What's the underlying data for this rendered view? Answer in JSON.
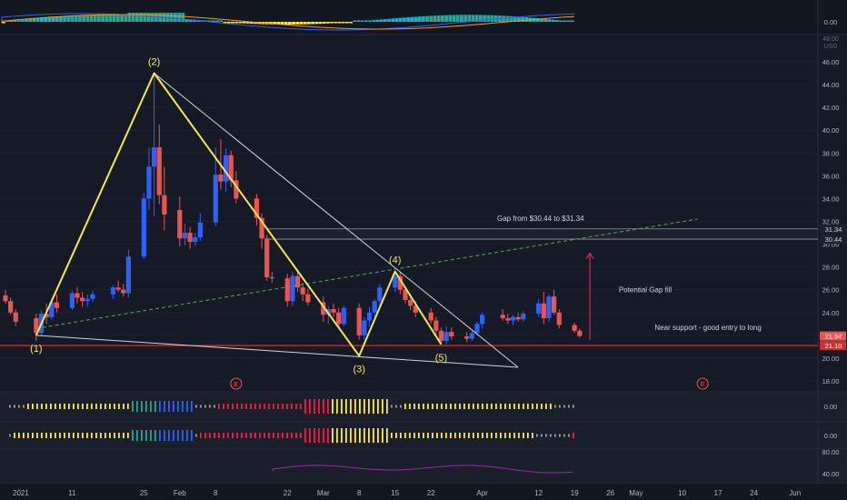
{
  "colors": {
    "background": "#131722",
    "bull": "#2962ff",
    "bear": "#ef5350",
    "wave": "#f5e94a",
    "support": "#d32f2f",
    "trend": "#4caf50",
    "arrow": "#e91e63",
    "grid": "#1e2230",
    "text": "#b2b5be",
    "rsi": "#9c27b0"
  },
  "chart_data": {
    "type": "candlestick",
    "title": "",
    "price_axis": {
      "unit": "USD",
      "range": [
        17,
        47
      ],
      "ticks": [
        "46.00",
        "44.00",
        "42.00",
        "40.00",
        "38.00",
        "36.00",
        "34.00",
        "32.00",
        "30.00",
        "28.00",
        "26.00",
        "24.00",
        "22.00",
        "20.00",
        "18.00"
      ],
      "top_tick": "48.00"
    },
    "time_axis": {
      "range": [
        "2020-12-29",
        "2021-06-03"
      ],
      "ticks": [
        {
          "date": "2021-01-01",
          "label": "2021"
        },
        {
          "date": "2021-01-11",
          "label": "11"
        },
        {
          "date": "2021-01-25",
          "label": "25"
        },
        {
          "date": "2021-02-01",
          "label": "Feb"
        },
        {
          "date": "2021-02-08",
          "label": "8"
        },
        {
          "date": "2021-02-22",
          "label": "22"
        },
        {
          "date": "2021-03-01",
          "label": "Mar"
        },
        {
          "date": "2021-03-08",
          "label": "8"
        },
        {
          "date": "2021-03-15",
          "label": "15"
        },
        {
          "date": "2021-03-22",
          "label": "22"
        },
        {
          "date": "2021-04-01",
          "label": "Apr"
        },
        {
          "date": "2021-04-12",
          "label": "12"
        },
        {
          "date": "2021-04-19",
          "label": "19"
        },
        {
          "date": "2021-04-26",
          "label": "26"
        },
        {
          "date": "2021-05-01",
          "label": "May"
        },
        {
          "date": "2021-05-10",
          "label": "10"
        },
        {
          "date": "2021-05-17",
          "label": "17"
        },
        {
          "date": "2021-05-24",
          "label": "24"
        },
        {
          "date": "2021-06-01",
          "label": "Jun"
        }
      ]
    },
    "candles": [
      {
        "d": "2020-12-29",
        "o": 25.5,
        "h": 26.0,
        "l": 24.8,
        "c": 25.0
      },
      {
        "d": "2020-12-30",
        "o": 25.0,
        "h": 25.3,
        "l": 23.8,
        "c": 24.0
      },
      {
        "d": "2020-12-31",
        "o": 24.0,
        "h": 24.3,
        "l": 22.8,
        "c": 23.2
      },
      {
        "d": "2021-01-04",
        "o": 23.5,
        "h": 23.9,
        "l": 21.5,
        "c": 22.2
      },
      {
        "d": "2021-01-05",
        "o": 22.2,
        "h": 24.2,
        "l": 22.0,
        "c": 23.9
      },
      {
        "d": "2021-01-06",
        "o": 23.9,
        "h": 24.8,
        "l": 23.0,
        "c": 23.6
      },
      {
        "d": "2021-01-07",
        "o": 23.6,
        "h": 25.2,
        "l": 23.4,
        "c": 24.9
      },
      {
        "d": "2021-01-08",
        "o": 24.9,
        "h": 25.6,
        "l": 24.0,
        "c": 24.4
      },
      {
        "d": "2021-01-11",
        "o": 24.4,
        "h": 25.9,
        "l": 24.2,
        "c": 25.7
      },
      {
        "d": "2021-01-12",
        "o": 25.7,
        "h": 26.2,
        "l": 24.8,
        "c": 25.3
      },
      {
        "d": "2021-01-13",
        "o": 25.3,
        "h": 25.8,
        "l": 24.5,
        "c": 25.0
      },
      {
        "d": "2021-01-14",
        "o": 25.0,
        "h": 25.6,
        "l": 24.5,
        "c": 25.2
      },
      {
        "d": "2021-01-15",
        "o": 25.2,
        "h": 25.9,
        "l": 24.9,
        "c": 25.6
      },
      {
        "d": "2021-01-19",
        "o": 25.6,
        "h": 26.4,
        "l": 25.2,
        "c": 26.2
      },
      {
        "d": "2021-01-20",
        "o": 26.2,
        "h": 26.8,
        "l": 25.8,
        "c": 26.0
      },
      {
        "d": "2021-01-21",
        "o": 26.0,
        "h": 26.5,
        "l": 25.4,
        "c": 25.7
      },
      {
        "d": "2021-01-22",
        "o": 25.7,
        "h": 29.5,
        "l": 25.3,
        "c": 28.9
      },
      {
        "d": "2021-01-25",
        "o": 28.9,
        "h": 34.5,
        "l": 28.7,
        "c": 34.0
      },
      {
        "d": "2021-01-26",
        "o": 34.0,
        "h": 38.5,
        "l": 33.0,
        "c": 36.8
      },
      {
        "d": "2021-01-27",
        "o": 36.8,
        "h": 45.0,
        "l": 32.5,
        "c": 38.5
      },
      {
        "d": "2021-01-28",
        "o": 38.5,
        "h": 40.5,
        "l": 33.5,
        "c": 34.3
      },
      {
        "d": "2021-01-29",
        "o": 34.3,
        "h": 36.8,
        "l": 31.2,
        "c": 32.6
      },
      {
        "d": "2021-02-01",
        "o": 33.0,
        "h": 34.2,
        "l": 29.8,
        "c": 30.5
      },
      {
        "d": "2021-02-02",
        "o": 30.5,
        "h": 31.8,
        "l": 29.9,
        "c": 31.0
      },
      {
        "d": "2021-02-03",
        "o": 31.0,
        "h": 31.5,
        "l": 29.6,
        "c": 30.2
      },
      {
        "d": "2021-02-04",
        "o": 30.2,
        "h": 31.0,
        "l": 29.9,
        "c": 30.6
      },
      {
        "d": "2021-02-05",
        "o": 30.6,
        "h": 32.7,
        "l": 30.3,
        "c": 31.9
      },
      {
        "d": "2021-02-08",
        "o": 31.9,
        "h": 38.5,
        "l": 31.6,
        "c": 36.1
      },
      {
        "d": "2021-02-09",
        "o": 36.1,
        "h": 39.2,
        "l": 34.8,
        "c": 35.5
      },
      {
        "d": "2021-02-10",
        "o": 35.5,
        "h": 38.4,
        "l": 34.6,
        "c": 37.8
      },
      {
        "d": "2021-02-11",
        "o": 37.8,
        "h": 38.2,
        "l": 35.0,
        "c": 35.6
      },
      {
        "d": "2021-02-12",
        "o": 35.6,
        "h": 36.4,
        "l": 33.6,
        "c": 34.0
      },
      {
        "d": "2021-02-16",
        "o": 34.0,
        "h": 34.4,
        "l": 31.6,
        "c": 32.3
      },
      {
        "d": "2021-02-17",
        "o": 32.3,
        "h": 32.7,
        "l": 29.6,
        "c": 30.5
      },
      {
        "d": "2021-02-18",
        "o": 30.5,
        "h": 30.8,
        "l": 26.8,
        "c": 27.1
      },
      {
        "d": "2021-02-19",
        "o": 27.1,
        "h": 27.6,
        "l": 26.6,
        "c": 27.0
      },
      {
        "d": "2021-02-22",
        "o": 27.0,
        "h": 27.4,
        "l": 24.5,
        "c": 25.0
      },
      {
        "d": "2021-02-23",
        "o": 25.0,
        "h": 27.6,
        "l": 24.6,
        "c": 27.2
      },
      {
        "d": "2021-02-24",
        "o": 27.2,
        "h": 27.8,
        "l": 25.8,
        "c": 26.2
      },
      {
        "d": "2021-02-25",
        "o": 26.2,
        "h": 26.6,
        "l": 25.0,
        "c": 25.6
      },
      {
        "d": "2021-02-26",
        "o": 25.6,
        "h": 26.1,
        "l": 24.6,
        "c": 24.9
      },
      {
        "d": "2021-03-01",
        "o": 24.9,
        "h": 25.4,
        "l": 23.2,
        "c": 23.8
      },
      {
        "d": "2021-03-02",
        "o": 23.8,
        "h": 24.6,
        "l": 23.0,
        "c": 24.3
      },
      {
        "d": "2021-03-03",
        "o": 24.3,
        "h": 24.8,
        "l": 23.6,
        "c": 24.0
      },
      {
        "d": "2021-03-04",
        "o": 24.0,
        "h": 24.4,
        "l": 22.6,
        "c": 23.0
      },
      {
        "d": "2021-03-05",
        "o": 23.0,
        "h": 24.6,
        "l": 22.8,
        "c": 24.4
      },
      {
        "d": "2021-03-08",
        "o": 24.4,
        "h": 24.8,
        "l": 21.6,
        "c": 22.0
      },
      {
        "d": "2021-03-09",
        "o": 22.0,
        "h": 23.6,
        "l": 21.6,
        "c": 23.3
      },
      {
        "d": "2021-03-10",
        "o": 23.3,
        "h": 24.5,
        "l": 22.8,
        "c": 24.0
      },
      {
        "d": "2021-03-11",
        "o": 24.0,
        "h": 25.2,
        "l": 23.6,
        "c": 25.0
      },
      {
        "d": "2021-03-12",
        "o": 25.0,
        "h": 26.5,
        "l": 24.6,
        "c": 26.2
      },
      {
        "d": "2021-03-15",
        "o": 26.2,
        "h": 27.6,
        "l": 25.8,
        "c": 27.2
      },
      {
        "d": "2021-03-16",
        "o": 27.2,
        "h": 27.6,
        "l": 25.6,
        "c": 26.0
      },
      {
        "d": "2021-03-17",
        "o": 26.0,
        "h": 26.3,
        "l": 24.8,
        "c": 25.1
      },
      {
        "d": "2021-03-18",
        "o": 25.1,
        "h": 25.5,
        "l": 24.2,
        "c": 24.6
      },
      {
        "d": "2021-03-19",
        "o": 24.6,
        "h": 25.0,
        "l": 23.6,
        "c": 24.0
      },
      {
        "d": "2021-03-22",
        "o": 24.0,
        "h": 24.4,
        "l": 23.0,
        "c": 23.3
      },
      {
        "d": "2021-03-23",
        "o": 23.3,
        "h": 23.6,
        "l": 22.0,
        "c": 22.4
      },
      {
        "d": "2021-03-24",
        "o": 22.4,
        "h": 22.7,
        "l": 21.2,
        "c": 21.5
      },
      {
        "d": "2021-03-25",
        "o": 21.5,
        "h": 22.8,
        "l": 21.2,
        "c": 22.3
      },
      {
        "d": "2021-03-26",
        "o": 22.3,
        "h": 22.7,
        "l": 21.6,
        "c": 21.9
      },
      {
        "d": "2021-03-29",
        "o": 21.9,
        "h": 22.3,
        "l": 21.4,
        "c": 21.7
      },
      {
        "d": "2021-03-30",
        "o": 21.7,
        "h": 22.5,
        "l": 21.5,
        "c": 22.2
      },
      {
        "d": "2021-03-31",
        "o": 22.2,
        "h": 23.2,
        "l": 22.0,
        "c": 23.0
      },
      {
        "d": "2021-04-01",
        "o": 23.0,
        "h": 24.0,
        "l": 22.6,
        "c": 23.8
      },
      {
        "d": "2021-04-05",
        "o": 23.8,
        "h": 24.3,
        "l": 23.3,
        "c": 23.5
      },
      {
        "d": "2021-04-06",
        "o": 23.5,
        "h": 23.9,
        "l": 23.0,
        "c": 23.3
      },
      {
        "d": "2021-04-07",
        "o": 23.3,
        "h": 23.8,
        "l": 22.9,
        "c": 23.6
      },
      {
        "d": "2021-04-08",
        "o": 23.6,
        "h": 24.0,
        "l": 23.2,
        "c": 23.4
      },
      {
        "d": "2021-04-09",
        "o": 23.4,
        "h": 24.1,
        "l": 23.2,
        "c": 23.9
      },
      {
        "d": "2021-04-12",
        "o": 23.9,
        "h": 25.2,
        "l": 23.6,
        "c": 24.8
      },
      {
        "d": "2021-04-13",
        "o": 24.8,
        "h": 25.8,
        "l": 23.0,
        "c": 23.5
      },
      {
        "d": "2021-04-14",
        "o": 23.5,
        "h": 25.6,
        "l": 23.2,
        "c": 25.4
      },
      {
        "d": "2021-04-15",
        "o": 25.4,
        "h": 26.0,
        "l": 23.8,
        "c": 24.0
      },
      {
        "d": "2021-04-16",
        "o": 24.0,
        "h": 24.3,
        "l": 22.6,
        "c": 22.9
      },
      {
        "d": "2021-04-19",
        "o": 22.9,
        "h": 23.1,
        "l": 22.2,
        "c": 22.4
      },
      {
        "d": "2021-04-20",
        "o": 22.4,
        "h": 22.6,
        "l": 21.8,
        "c": 21.94
      }
    ],
    "price_labels": [
      {
        "value": 31.34,
        "label": "31.34",
        "bg": "#1e2230",
        "fg": "#d1d4dc"
      },
      {
        "value": 30.44,
        "label": "30.44",
        "bg": "#1e2230",
        "fg": "#d1d4dc"
      },
      {
        "value": 21.94,
        "label": "21.94",
        "bg": "#ef5350",
        "fg": "#ffffff"
      },
      {
        "value": 21.1,
        "label": "21.10",
        "bg": "#d32f2f",
        "fg": "#ffffff"
      }
    ],
    "wave_points": [
      {
        "label": "(1)",
        "d": "2021-01-04",
        "price": 22.0,
        "label_pos": "below"
      },
      {
        "label": "(2)",
        "d": "2021-01-27",
        "price": 45.0,
        "label_pos": "above"
      },
      {
        "label": "(3)",
        "d": "2021-03-08",
        "price": 20.2,
        "label_pos": "below"
      },
      {
        "label": "(4)",
        "d": "2021-03-15",
        "price": 27.6,
        "label_pos": "above"
      },
      {
        "label": "(5)",
        "d": "2021-03-24",
        "price": 21.2,
        "label_pos": "below"
      }
    ],
    "trendlines": [
      {
        "kind": "upper",
        "from": {
          "d": "2021-01-27",
          "price": 45.0
        },
        "to": {
          "d": "2021-04-08",
          "price": 19.2
        }
      },
      {
        "kind": "lower",
        "from": {
          "d": "2021-01-04",
          "price": 22.0
        },
        "to": {
          "d": "2021-04-08",
          "price": 19.2
        }
      },
      {
        "kind": "dashed",
        "from": {
          "d": "2021-01-04",
          "price": 22.6
        },
        "to": {
          "d": "2021-05-13",
          "price": 32.2
        }
      }
    ],
    "gap": {
      "low": 30.44,
      "high": 31.34,
      "label": "Gap from $30.44 to $31.34"
    },
    "support": {
      "price": 21.1
    },
    "annotations": [
      {
        "text": "Potential Gap fill",
        "d": "2021-04-28",
        "price": 26.0
      },
      {
        "text": "Near support - good entry to long",
        "d": "2021-05-05",
        "price": 22.7
      }
    ],
    "arrow": {
      "d": "2021-04-22",
      "from_price": 21.6,
      "to_price": 29.2
    },
    "earnings_markers": [
      {
        "d": "2021-02-12",
        "label": "E"
      },
      {
        "d": "2021-05-14",
        "label": "E"
      }
    ],
    "indicator_panes": [
      {
        "name": "macd",
        "tick": "0.00"
      },
      {
        "name": "momentum_1",
        "tick": "0.00"
      },
      {
        "name": "momentum_2",
        "tick": "0.00"
      },
      {
        "name": "rsi",
        "ticks": [
          "80.00",
          "40.00"
        ]
      }
    ]
  }
}
